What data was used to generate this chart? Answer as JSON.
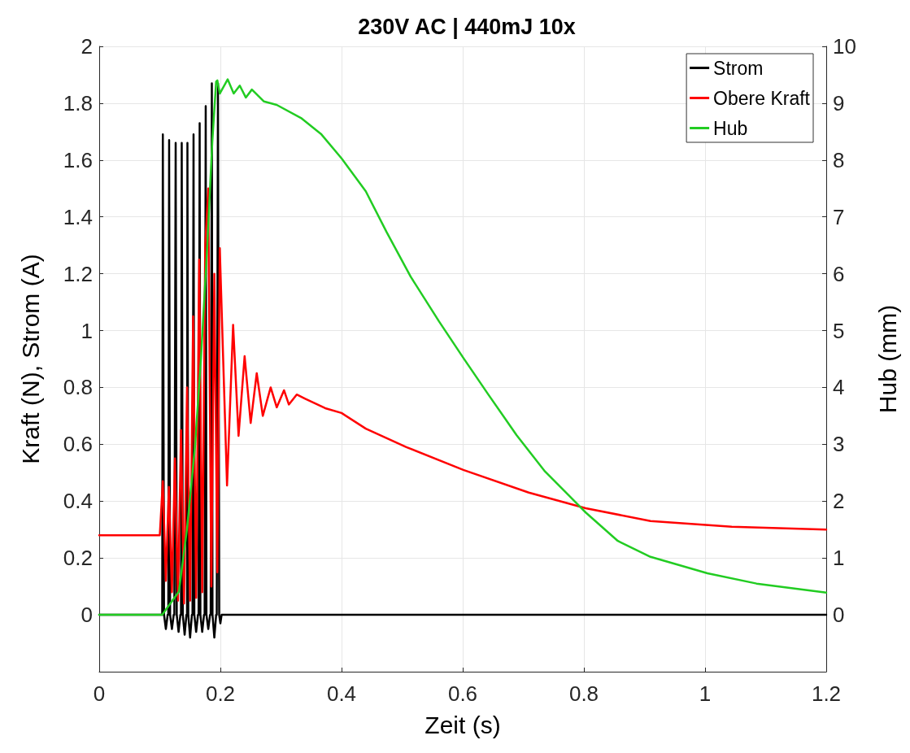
{
  "chart_data": {
    "type": "line",
    "title": "230V AC | 440mJ 10x",
    "xlabel": "Zeit (s)",
    "ylabel": "Kraft (N), Strom (A)",
    "y2label": "Hub (mm)",
    "xlim": [
      0,
      1.2
    ],
    "xticks": [
      0,
      0.2,
      0.4,
      0.6,
      0.8,
      1,
      1.2
    ],
    "ylim": [
      -0.2,
      2
    ],
    "yticks": [
      0,
      0.2,
      0.4,
      0.6,
      0.8,
      1,
      1.2,
      1.4,
      1.6,
      1.8,
      2
    ],
    "y2lim": [
      -1,
      10
    ],
    "y2ticks": [
      0,
      1,
      2,
      3,
      4,
      5,
      6,
      7,
      8,
      9,
      10
    ],
    "grid": true,
    "legend": "top right",
    "marker": "none",
    "line_style": "solid",
    "series": [
      {
        "name": "Strom",
        "color": "#000000",
        "x": [
          0,
          0.104,
          0.105,
          0.107,
          0.11,
          0.113,
          0.114,
          0.1154,
          0.117,
          0.12,
          0.123,
          0.124,
          0.1262,
          0.128,
          0.131,
          0.134,
          0.135,
          0.1362,
          0.138,
          0.141,
          0.144,
          0.145,
          0.1456,
          0.147,
          0.15,
          0.153,
          0.154,
          0.1557,
          0.157,
          0.16,
          0.163,
          0.164,
          0.1658,
          0.167,
          0.17,
          0.173,
          0.174,
          0.1758,
          0.177,
          0.18,
          0.183,
          0.184,
          0.1859,
          0.187,
          0.19,
          0.193,
          0.194,
          0.196,
          0.198,
          0.2,
          0.202,
          1.2
        ],
        "values": [
          0,
          0,
          1.69,
          0,
          -0.05,
          0,
          0,
          1.67,
          0,
          -0.05,
          0,
          0,
          1.66,
          0,
          -0.06,
          0,
          0,
          1.66,
          0,
          -0.07,
          0,
          0,
          1.66,
          0,
          -0.08,
          0,
          0,
          1.69,
          0,
          -0.06,
          0,
          0,
          1.73,
          0,
          -0.06,
          0,
          0,
          1.79,
          0,
          -0.05,
          0,
          0,
          1.87,
          0,
          -0.08,
          0,
          0,
          1.87,
          0,
          -0.03,
          0,
          0
        ]
      },
      {
        "name": "Obere Kraft",
        "color": "#ff0000",
        "x": [
          0,
          0.1,
          0.105,
          0.11,
          0.115,
          0.12,
          0.125,
          0.13,
          0.135,
          0.14,
          0.145,
          0.15,
          0.155,
          0.16,
          0.165,
          0.17,
          0.175,
          0.18,
          0.185,
          0.19,
          0.195,
          0.199,
          0.211,
          0.221,
          0.23,
          0.24,
          0.25,
          0.26,
          0.27,
          0.283,
          0.293,
          0.305,
          0.313,
          0.326,
          0.34,
          0.373,
          0.4,
          0.44,
          0.507,
          0.601,
          0.709,
          0.803,
          0.91,
          1.044,
          1.2
        ],
        "values": [
          0.28,
          0.28,
          0.47,
          0.12,
          0.45,
          0.08,
          0.55,
          0.05,
          0.65,
          0.04,
          0.8,
          0.05,
          1.05,
          0.06,
          1.25,
          0.08,
          1.3,
          1.5,
          0.1,
          1.2,
          0.15,
          1.29,
          0.455,
          1.02,
          0.63,
          0.91,
          0.675,
          0.85,
          0.7,
          0.8,
          0.73,
          0.79,
          0.74,
          0.775,
          0.76,
          0.727,
          0.71,
          0.655,
          0.59,
          0.51,
          0.43,
          0.375,
          0.33,
          0.31,
          0.3
        ]
      },
      {
        "name": "Hub",
        "color": "#22cc22",
        "axis": "y2",
        "x": [
          0,
          0.104,
          0.1315,
          0.145,
          0.158,
          0.168,
          0.1785,
          0.1866,
          0.193,
          0.195,
          0.199,
          0.212,
          0.222,
          0.232,
          0.242,
          0.252,
          0.272,
          0.293,
          0.333,
          0.366,
          0.4,
          0.44,
          0.474,
          0.514,
          0.561,
          0.601,
          0.642,
          0.689,
          0.736,
          0.776,
          0.803,
          0.856,
          0.91,
          1.004,
          1.085,
          1.2
        ],
        "values": [
          0,
          0,
          0.41,
          1.52,
          2.95,
          4.52,
          6.52,
          8.31,
          9.38,
          9.4,
          9.17,
          9.42,
          9.17,
          9.31,
          9.1,
          9.24,
          9.03,
          8.97,
          8.74,
          8.46,
          8.03,
          7.45,
          6.74,
          5.95,
          5.16,
          4.52,
          3.88,
          3.16,
          2.52,
          2.09,
          1.8,
          1.3,
          1.02,
          0.73,
          0.55,
          0.39
        ]
      }
    ]
  }
}
